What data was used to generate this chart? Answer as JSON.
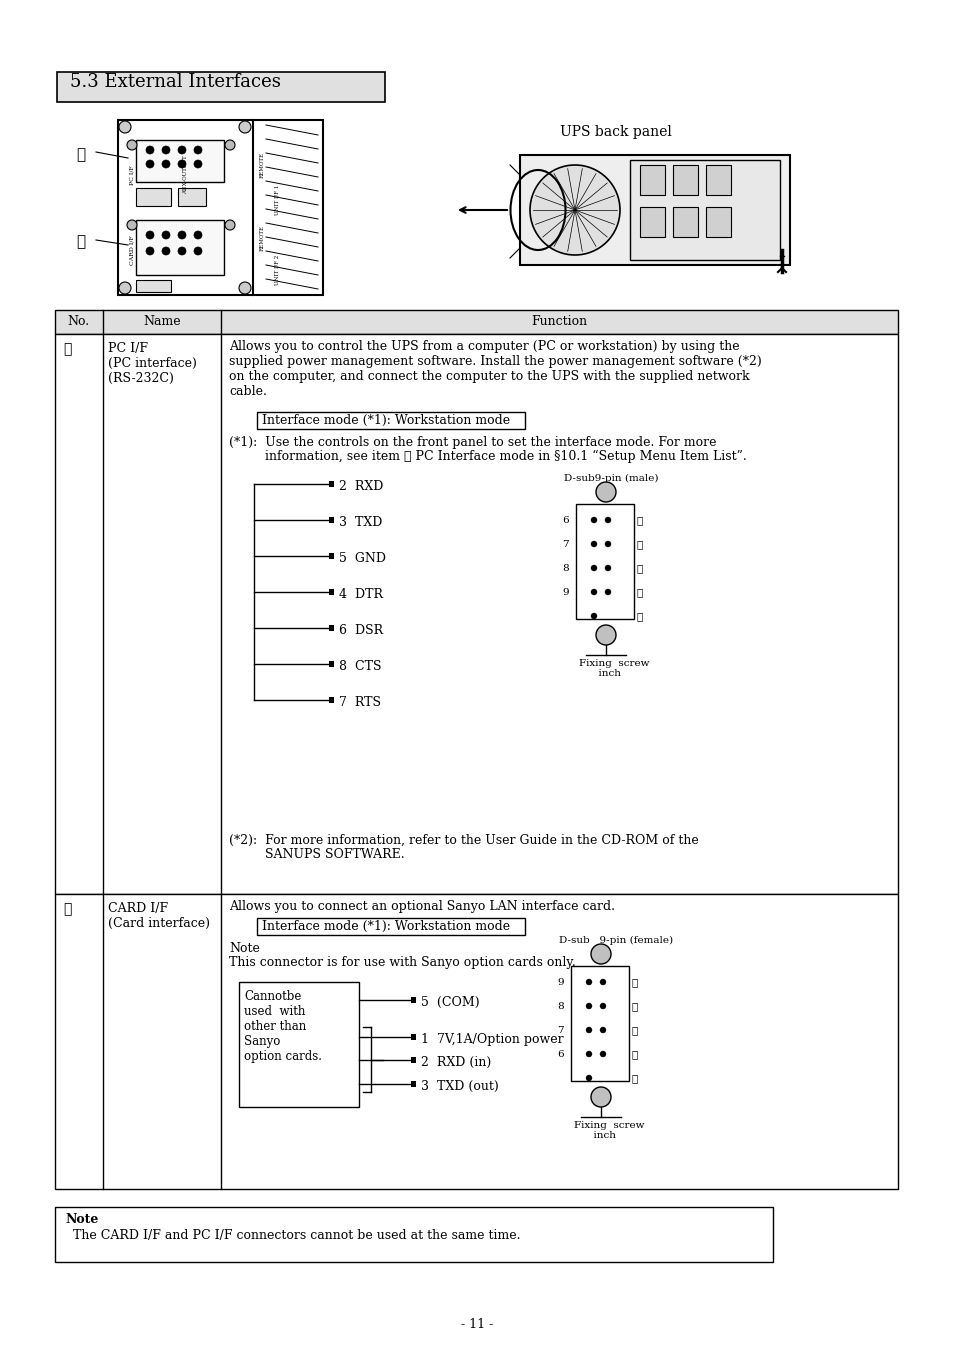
{
  "page_bg": "#ffffff",
  "title": "5.3 External Interfaces",
  "title_bg": "#d8d8d8",
  "row1_no": "①",
  "row1_name": "PC I/F\n(PC interface)\n(RS-232C)",
  "row1_func_para1": "Allows you to control the UPS from a computer (PC or workstation) by using the\nsupplied power management software. Install the power management software (*2)\non the computer, and connect the computer to the UPS with the supplied network\ncable.",
  "row1_interface_mode": "Interface mode (*1): Workstation mode",
  "row1_note1_a": "(*1):  Use the controls on the front panel to set the interface mode. For more",
  "row1_note1_b": "         information, see item ⑥ PC Interface mode in §10.1 “Setup Menu Item List”.",
  "row1_pins": [
    "2  RXD",
    "3  TXD",
    "5  GND",
    "4  DTR",
    "6  DSR",
    "8  CTS",
    "7  RTS"
  ],
  "row1_dsub_label": "D-sub9-pin (male)",
  "row1_dsub_pin_left": [
    "6",
    "7",
    "8",
    "9"
  ],
  "row1_dsub_pin_right": [
    "①",
    "②",
    "③",
    "④",
    "⑤"
  ],
  "row1_fixing": "Fixing  screw\n      inch",
  "row1_note2_a": "(*2):  For more information, refer to the User Guide in the CD-ROM of the",
  "row1_note2_b": "         SANUPS SOFTWARE.",
  "row2_no": "②",
  "row2_name": "CARD I/F\n(Card interface)",
  "row2_func_para1": "Allows you to connect an optional Sanyo LAN interface card.",
  "row2_interface_mode": "Interface mode (*1): Workstation mode",
  "row2_note_title": "Note",
  "row2_note_body": "This connector is for use with Sanyo option cards only.",
  "row2_box_text": "Cannotbe\nused  with\nother than\nSanyo\noption cards.",
  "row2_pins": [
    "5  (COM)",
    "1  7V,1A/Option power",
    "2  RXD (in)",
    "3  TXD (out)"
  ],
  "row2_dsub_label": "D-sub   9-pin (female)",
  "row2_dsub_pin_left": [
    "9",
    "8",
    "7",
    "6"
  ],
  "row2_dsub_pin_right": [
    "⑤",
    "④",
    "③",
    "②",
    "①"
  ],
  "row2_fixing": "Fixing  screw\n      inch",
  "bottom_note_title": "Note",
  "bottom_note_text": "  The CARD I/F and PC I/F connectors cannot be used at the same time.",
  "page_number": "- 11 -",
  "ups_back_panel_label": "UPS back panel"
}
